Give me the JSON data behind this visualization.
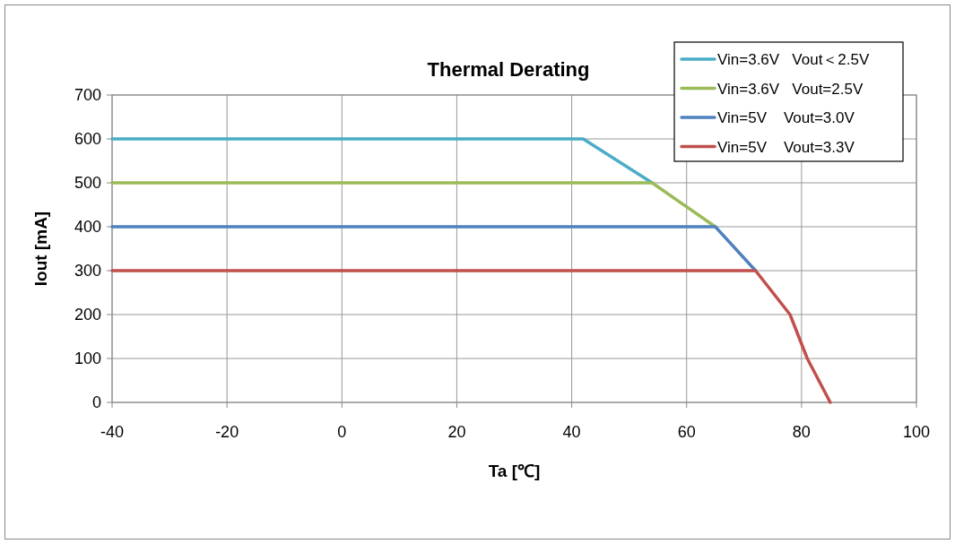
{
  "chart_data": {
    "type": "line",
    "title": "Thermal Derating",
    "xlabel": "Ta [℃]",
    "ylabel": "Iout [mA]",
    "xlim": [
      -40,
      100
    ],
    "xticks": [
      -40,
      -20,
      0,
      20,
      40,
      60,
      80,
      100
    ],
    "ylim": [
      0,
      700
    ],
    "yticks": [
      0,
      100,
      200,
      300,
      400,
      500,
      600,
      700
    ],
    "grid": true,
    "legend": "top right",
    "marker": "none",
    "line_style": "solid",
    "series": [
      {
        "name": "Vin=3.6V   Vout＜2.5V",
        "color": "#4bacc6",
        "x": [
          -40,
          42,
          54
        ],
        "values": [
          600,
          600,
          500
        ]
      },
      {
        "name": "Vin=3.6V   Vout=2.5V",
        "color": "#9bbb59",
        "x": [
          -40,
          54,
          65
        ],
        "values": [
          500,
          500,
          400
        ]
      },
      {
        "name": "Vin=5V    Vout=3.0V",
        "color": "#4f81bd",
        "x": [
          -40,
          65,
          72
        ],
        "values": [
          400,
          400,
          300
        ]
      },
      {
        "name": "Vin=5V    Vout=3.3V",
        "color": "#c0504d",
        "x": [
          -40,
          72,
          78,
          81,
          85
        ],
        "values": [
          300,
          300,
          200,
          100,
          0
        ]
      }
    ]
  }
}
